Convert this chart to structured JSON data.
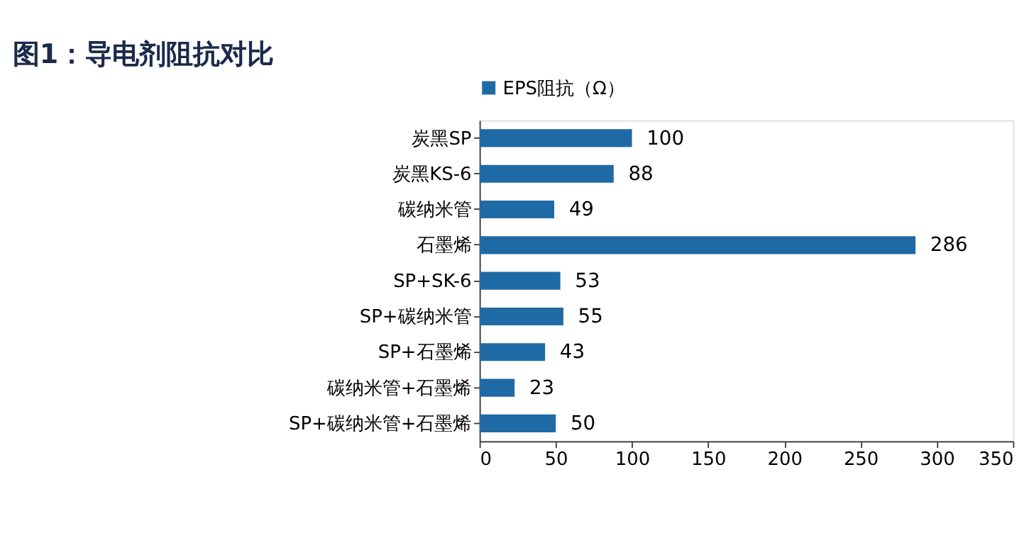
{
  "chart_data": {
    "type": "bar",
    "orientation": "horizontal",
    "title": "图1：导电剂阻抗对比",
    "categories": [
      "炭黑SP",
      "炭黑KS-6",
      "碳纳米管",
      "石墨烯",
      "SP+SK-6",
      "SP+碳纳米管",
      "SP+石墨烯",
      "碳纳米管+石墨烯",
      "SP+碳纳米管+石墨烯"
    ],
    "series": [
      {
        "name": "EPS阻抗（Ω）",
        "color": "#1f6aa5",
        "values": [
          100,
          88,
          49,
          286,
          53,
          55,
          43,
          23,
          50
        ]
      }
    ],
    "xlim": [
      0,
      350
    ],
    "xticks": [
      0,
      50,
      100,
      150,
      200,
      250,
      300,
      350
    ],
    "data_labels": true,
    "legend": "top",
    "grid": false
  }
}
